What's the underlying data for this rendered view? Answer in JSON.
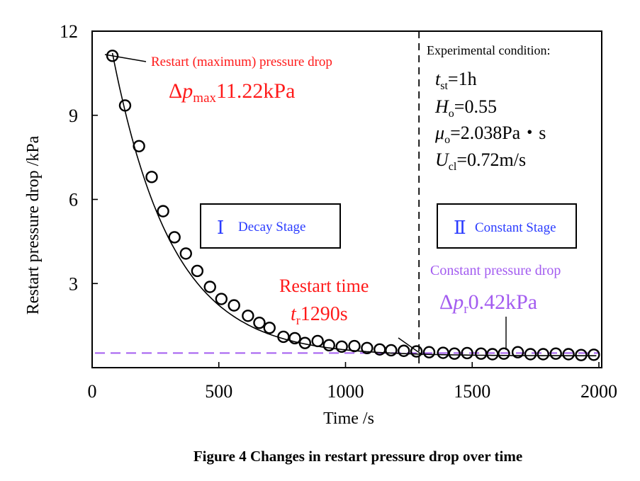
{
  "chart_data": {
    "type": "scatter",
    "title": "",
    "xlabel": "Time /s",
    "ylabel": "Restart pressure drop /kPa",
    "xlim": [
      0,
      2000
    ],
    "ylim": [
      0,
      12
    ],
    "x_ticks": [
      "0",
      "500",
      "1000",
      "1500",
      "2000"
    ],
    "y_ticks": [
      "3",
      "6",
      "9",
      "12"
    ],
    "series": [
      {
        "name": "Measured restart pressure drop",
        "marker": "open-circle",
        "x": [
          80,
          130,
          185,
          235,
          280,
          325,
          370,
          415,
          465,
          510,
          560,
          615,
          660,
          700,
          755,
          800,
          840,
          890,
          935,
          985,
          1035,
          1085,
          1135,
          1180,
          1230,
          1280,
          1330,
          1385,
          1430,
          1480,
          1535,
          1580,
          1625,
          1680,
          1730,
          1780,
          1830,
          1880,
          1930,
          1980
        ],
        "y": [
          11.12,
          9.35,
          7.9,
          6.8,
          5.58,
          4.65,
          4.07,
          3.45,
          2.88,
          2.45,
          2.22,
          1.85,
          1.6,
          1.42,
          1.1,
          1.05,
          0.88,
          0.95,
          0.8,
          0.75,
          0.77,
          0.7,
          0.65,
          0.62,
          0.6,
          0.58,
          0.55,
          0.53,
          0.5,
          0.52,
          0.5,
          0.48,
          0.5,
          0.55,
          0.48,
          0.48,
          0.5,
          0.48,
          0.45,
          0.46
        ]
      },
      {
        "name": "Fitted curve",
        "style": "solid black line",
        "model": "0.42 + 10.8 * exp(-(t - 80) / 235)",
        "x": [
          80,
          1990
        ]
      }
    ],
    "reference_lines": [
      {
        "orientation": "vertical",
        "x": 1290,
        "style": "dashed black",
        "meaning": "Restart time"
      },
      {
        "orientation": "horizontal",
        "y": 0.42,
        "style": "dashed purple",
        "meaning": "Constant pressure drop"
      }
    ],
    "annotations": {
      "max_label": "Restart (maximum) pressure drop",
      "max_value": "11.22kPa",
      "restart_time_label": "Restart time",
      "restart_time_value": "1290s",
      "constant_label": "Constant pressure drop",
      "constant_value": "0.42kPa",
      "stage1_numeral": "Ⅰ",
      "stage1_label": "Decay Stage",
      "stage2_numeral": "Ⅱ",
      "stage2_label": "Constant Stage",
      "condition_title": "Experimental condition:",
      "tst_value": "=1h",
      "ho_value": "=0.55",
      "muo_value": "=2.038Pa・s",
      "ucl_value": "=0.72m/s"
    },
    "legend": "none",
    "grid": false
  },
  "caption": "Figure 4 Changes in restart pressure drop over time",
  "colors": {
    "red": "#ff1a1a",
    "purple": "#a35cf0",
    "blue": "#2b3cff",
    "black": "#000000"
  }
}
